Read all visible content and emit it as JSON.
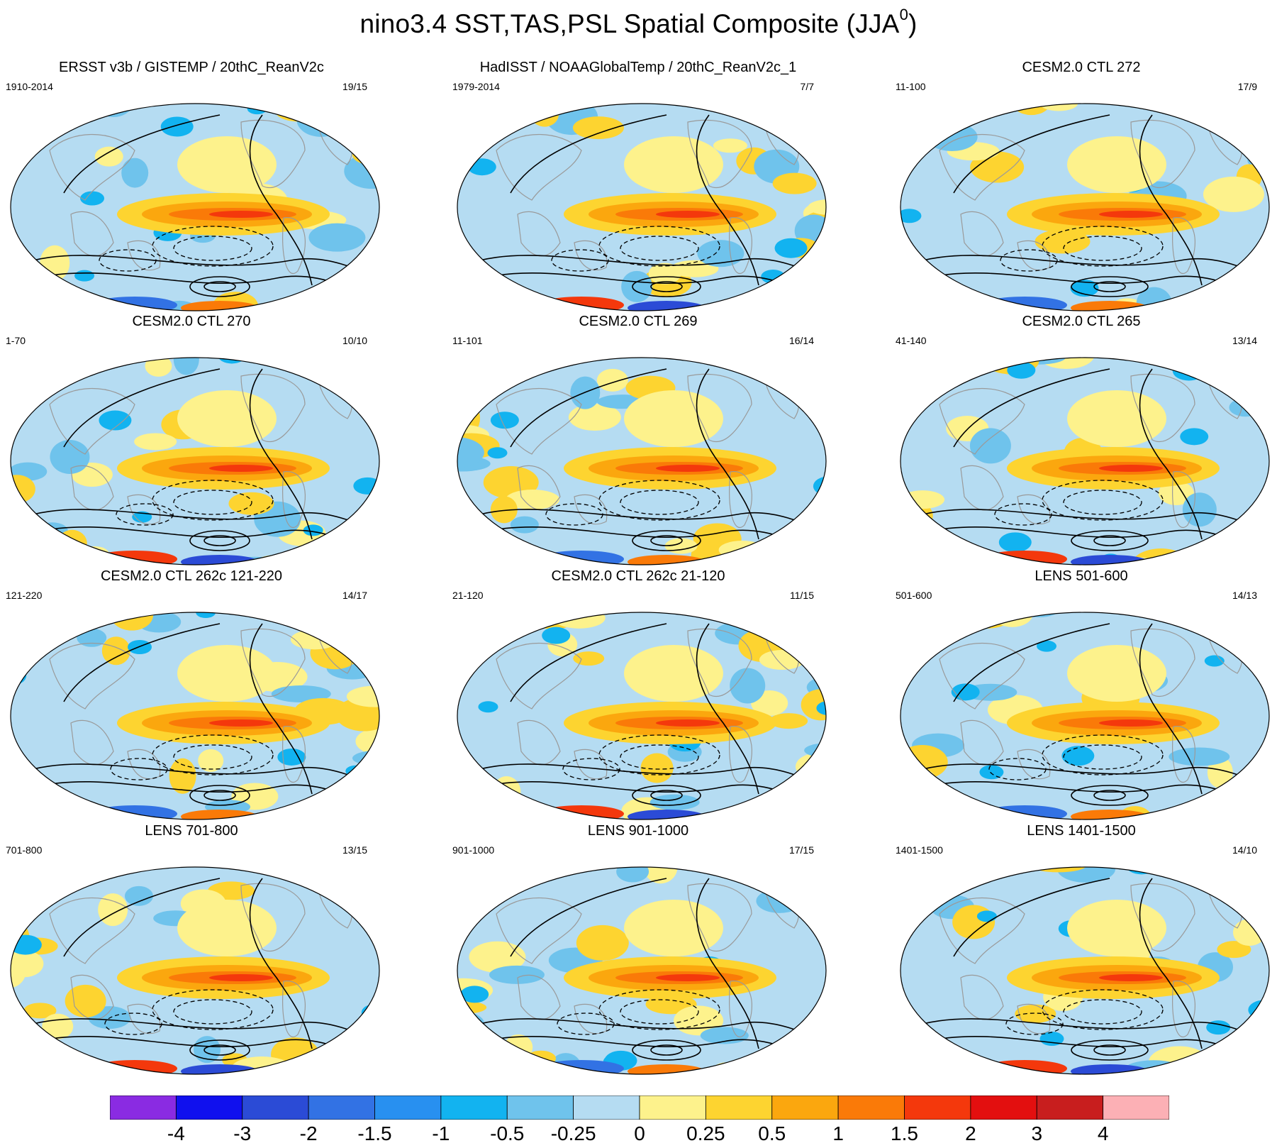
{
  "figure": {
    "title_main": "nino3.4 SST,TAS,PSL Spatial Composite (JJA",
    "title_sup": "0",
    "title_close": ")"
  },
  "panels": [
    {
      "title": "ERSST v3b / GISTEMP / 20thC_ReanV2c",
      "years": "1910-2014",
      "count": "19/15"
    },
    {
      "title": "HadISST / NOAAGlobalTemp / 20thC_ReanV2c_1",
      "years": "1979-2014",
      "count": "7/7"
    },
    {
      "title": "CESM2.0 CTL 272",
      "years": "11-100",
      "count": "17/9"
    },
    {
      "title": "CESM2.0 CTL 270",
      "years": "1-70",
      "count": "10/10"
    },
    {
      "title": "CESM2.0 CTL 269",
      "years": "11-101",
      "count": "16/14"
    },
    {
      "title": "CESM2.0 CTL 265",
      "years": "41-140",
      "count": "13/14"
    },
    {
      "title": "CESM2.0 CTL 262c 121-220",
      "years": "121-220",
      "count": "14/17"
    },
    {
      "title": "CESM2.0 CTL 262c 21-120",
      "years": "21-120",
      "count": "11/15"
    },
    {
      "title": "LENS 501-600",
      "years": "501-600",
      "count": "14/13"
    },
    {
      "title": "LENS 701-800",
      "years": "701-800",
      "count": "13/15"
    },
    {
      "title": "LENS 901-1000",
      "years": "901-1000",
      "count": "17/15"
    },
    {
      "title": "LENS 1401-1500",
      "years": "1401-1500",
      "count": "14/10"
    }
  ],
  "colorbar": {
    "labels": [
      "-4",
      "-3",
      "-2",
      "-1.5",
      "-1",
      "-0.5",
      "-0.25",
      "0",
      "0.25",
      "0.5",
      "1",
      "1.5",
      "2",
      "3",
      "4"
    ],
    "colors": [
      "#8a2be2",
      "#1010ee",
      "#2b4bd6",
      "#3272e4",
      "#2890f0",
      "#12b3f0",
      "#6fc3ec",
      "#b5dcf2",
      "#fdf28c",
      "#fdd430",
      "#fba70e",
      "#fa7a08",
      "#f4380c",
      "#e30f0f",
      "#c81e1e",
      "#fcb0b5"
    ]
  }
}
